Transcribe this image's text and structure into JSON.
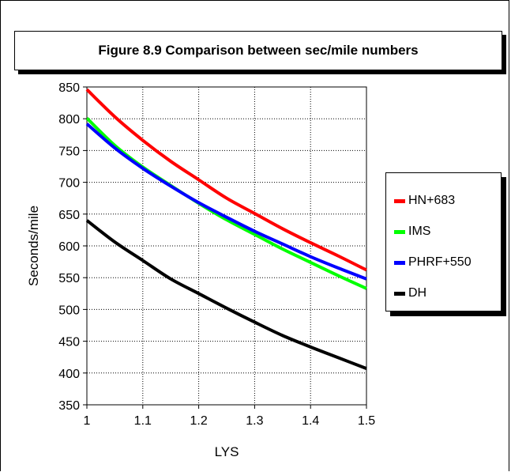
{
  "chart_data": {
    "type": "line",
    "title": "Figure 8.9 Comparison between sec/mile numbers",
    "xlabel": "LYS",
    "ylabel": "Seconds/mile",
    "xlim": [
      1,
      1.5
    ],
    "ylim": [
      350,
      850
    ],
    "xticks": [
      1,
      1.1,
      1.2,
      1.3,
      1.4,
      1.5
    ],
    "yticks": [
      350,
      400,
      450,
      500,
      550,
      600,
      650,
      700,
      750,
      800,
      850
    ],
    "xtick_labels": [
      "1",
      "1.1",
      "1.2",
      "1.3",
      "1.4",
      "1.5"
    ],
    "ytick_labels": [
      "350",
      "400",
      "450",
      "500",
      "550",
      "600",
      "650",
      "700",
      "750",
      "800",
      "850"
    ],
    "grid": true,
    "legend": "right",
    "x": [
      1.0,
      1.05,
      1.1,
      1.15,
      1.2,
      1.25,
      1.3,
      1.35,
      1.4,
      1.45,
      1.5
    ],
    "series": [
      {
        "name": "HN+683",
        "color": "#ff0000",
        "values": [
          846,
          803,
          766,
          733,
          704,
          675,
          651,
          627,
          605,
          584,
          562
        ]
      },
      {
        "name": "IMS",
        "color": "#00ff00",
        "values": [
          801,
          758,
          724,
          695,
          667,
          641,
          618,
          595,
          574,
          553,
          533
        ]
      },
      {
        "name": "PHRF+550",
        "color": "#0000ff",
        "values": [
          792,
          754,
          722,
          694,
          668,
          645,
          623,
          603,
          583,
          565,
          548
        ]
      },
      {
        "name": "DH",
        "color": "#000000",
        "values": [
          640,
          606,
          577,
          548,
          525,
          502,
          480,
          459,
          441,
          424,
          407
        ]
      }
    ]
  }
}
